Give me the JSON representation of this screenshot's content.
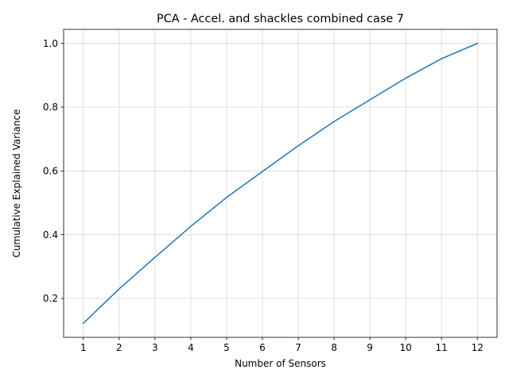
{
  "chart_data": {
    "type": "line",
    "title": "PCA - Accel. and shackles combined case 7",
    "xlabel": "Number of Sensors",
    "ylabel": "Cumulative Explained Variance",
    "x": [
      1,
      2,
      3,
      4,
      5,
      6,
      7,
      8,
      9,
      10,
      11,
      12
    ],
    "x_tick_labels": [
      "1",
      "2",
      "3",
      "4",
      "5",
      "6",
      "7",
      "8",
      "9",
      "10",
      "11",
      "12"
    ],
    "y_ticks": [
      0.2,
      0.4,
      0.6,
      0.8,
      1.0
    ],
    "y_tick_labels": [
      "0.2",
      "0.4",
      "0.6",
      "0.8",
      "1.0"
    ],
    "series": [
      {
        "values": [
          0.122,
          0.23,
          0.329,
          0.426,
          0.517,
          0.598,
          0.679,
          0.755,
          0.823,
          0.891,
          0.952,
          1.0
        ],
        "color": "#1f77b4"
      }
    ],
    "xlim": [
      0.45,
      12.55
    ],
    "ylim": [
      0.078,
      1.044
    ],
    "grid": true
  }
}
